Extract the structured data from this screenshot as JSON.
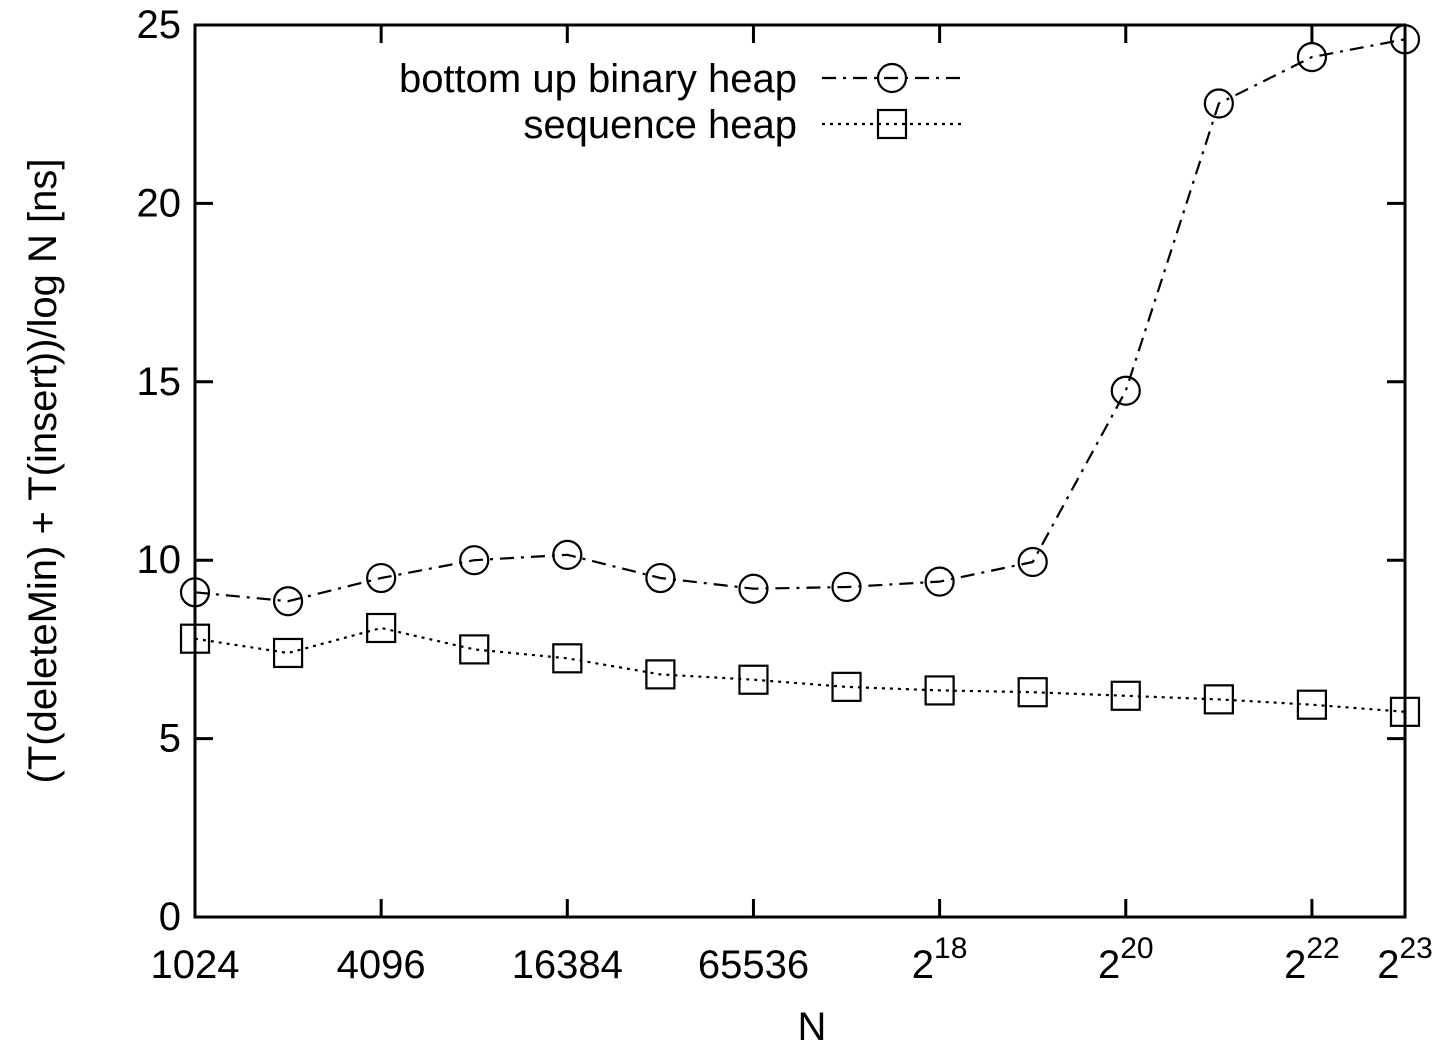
{
  "chart_data": {
    "type": "line",
    "xlabel": "N",
    "ylabel": "(T(deleteMin) + T(insert))/log N  [ns]",
    "x_scale": "log2",
    "xlim": [
      1024,
      8388608
    ],
    "ylim": [
      0,
      25
    ],
    "y_ticks": [
      0,
      5,
      10,
      15,
      20,
      25
    ],
    "x_ticks": [
      {
        "value": 1024,
        "base": "1024",
        "exp": ""
      },
      {
        "value": 4096,
        "base": "4096",
        "exp": ""
      },
      {
        "value": 16384,
        "base": "16384",
        "exp": ""
      },
      {
        "value": 65536,
        "base": "65536",
        "exp": ""
      },
      {
        "value": 262144,
        "base": "2",
        "exp": "18"
      },
      {
        "value": 1048576,
        "base": "2",
        "exp": "20"
      },
      {
        "value": 4194304,
        "base": "2",
        "exp": "22"
      },
      {
        "value": 8388608,
        "base": "2",
        "exp": "23"
      }
    ],
    "legend_position": "top-right",
    "grid": false,
    "x": [
      1024,
      2048,
      4096,
      8192,
      16384,
      32768,
      65536,
      131072,
      262144,
      524288,
      1048576,
      2097152,
      4194304,
      8388608
    ],
    "series": [
      {
        "name": "bottom up binary heap",
        "marker": "circle",
        "line_style": "dash-dot",
        "values": [
          9.1,
          8.85,
          9.5,
          10.0,
          10.15,
          9.5,
          9.2,
          9.25,
          9.4,
          9.95,
          14.75,
          22.8,
          24.1,
          24.6
        ]
      },
      {
        "name": "sequence heap",
        "marker": "square",
        "line_style": "dotted",
        "values": [
          7.8,
          7.4,
          8.1,
          7.5,
          7.25,
          6.8,
          6.65,
          6.45,
          6.35,
          6.3,
          6.2,
          6.1,
          5.95,
          5.75
        ]
      }
    ]
  }
}
